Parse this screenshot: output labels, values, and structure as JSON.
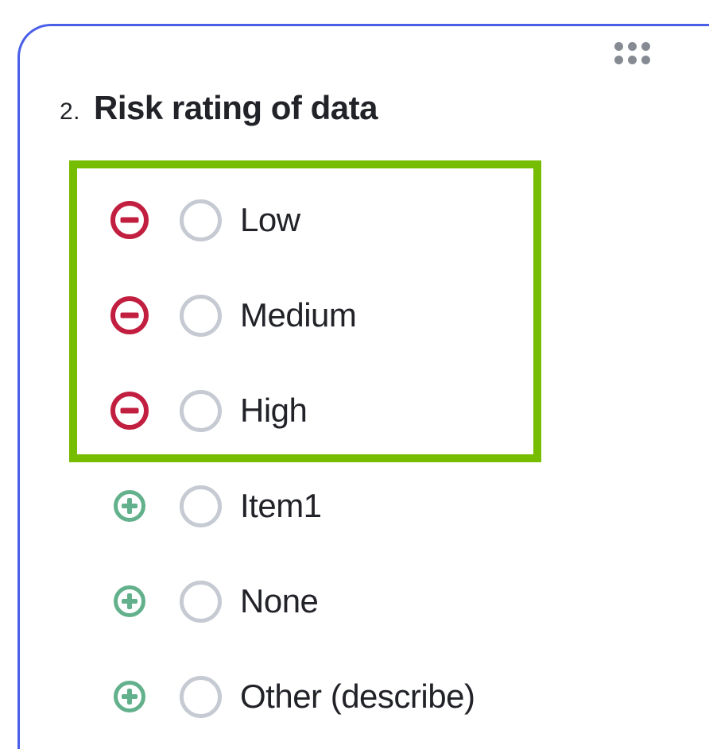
{
  "question": {
    "number": "2.",
    "title": "Risk rating of data"
  },
  "options": [
    {
      "label": "Low",
      "action": "remove",
      "selected": false,
      "highlighted": true
    },
    {
      "label": "Medium",
      "action": "remove",
      "selected": false,
      "highlighted": true
    },
    {
      "label": "High",
      "action": "remove",
      "selected": false,
      "highlighted": true
    },
    {
      "label": "Item1",
      "action": "add",
      "selected": false,
      "highlighted": false
    },
    {
      "label": "None",
      "action": "add",
      "selected": false,
      "highlighted": false
    },
    {
      "label": "Other (describe)",
      "action": "add",
      "selected": false,
      "highlighted": false
    }
  ],
  "icons": {
    "drag_handle": "six-dots-drag-handle",
    "remove": "minus-circle-icon",
    "add": "plus-circle-icon",
    "radio": "radio-button-unselected"
  },
  "colors": {
    "card_border": "#4A5FE8",
    "highlight_box": "#76BC00",
    "remove_icon": "#C21F40",
    "add_icon": "#63B18C",
    "radio_border": "#C6CAD2",
    "text": "#212328",
    "drag_dots": "#868B93"
  }
}
